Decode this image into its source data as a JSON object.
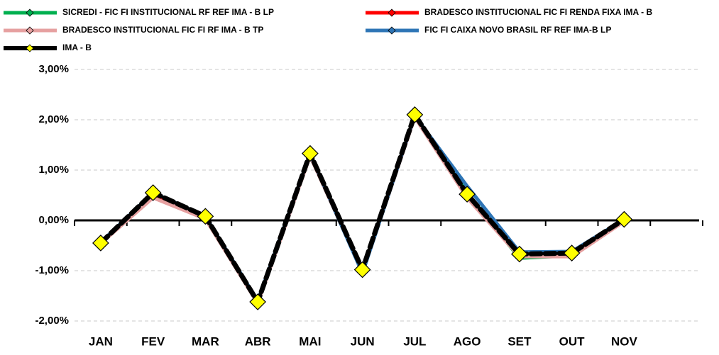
{
  "chart_data": {
    "type": "line",
    "categories": [
      "JAN",
      "FEV",
      "MAR",
      "ABR",
      "MAI",
      "JUN",
      "JUL",
      "AGO",
      "SET",
      "OUT",
      "NOV",
      null
    ],
    "series": [
      {
        "name": "SICREDI - FIC FI INSTITUCIONAL RF REF IMA - B LP",
        "color": "#00b050",
        "values": [
          -0.45,
          0.52,
          0.06,
          -1.63,
          1.3,
          -1.0,
          2.08,
          0.55,
          -0.75,
          -0.7,
          0.0,
          null
        ]
      },
      {
        "name": "BRADESCO INSTITUCIONAL FIC FI RENDA FIXA IMA - B",
        "color": "#ff0000",
        "values": [
          -0.45,
          0.5,
          0.05,
          -1.64,
          1.3,
          -1.0,
          2.06,
          0.5,
          -0.72,
          -0.7,
          -0.01,
          null
        ]
      },
      {
        "name": "BRADESCO INSTITUCIONAL FIC FI RF IMA - B TP",
        "color": "#e6a0a0",
        "values": [
          -0.46,
          0.45,
          0.03,
          -1.65,
          1.28,
          -1.02,
          2.05,
          0.45,
          -0.72,
          -0.72,
          -0.02,
          null
        ]
      },
      {
        "name": "FIC FI CAIXA NOVO BRASIL RF REF IMA-B LP",
        "color": "#2e75b6",
        "values": [
          -0.44,
          0.55,
          0.08,
          -1.6,
          1.32,
          -1.05,
          2.08,
          0.68,
          -0.63,
          -0.62,
          0.02,
          null
        ]
      },
      {
        "name": "IMA - B",
        "color": "#000000",
        "marker": "#ffff00",
        "values": [
          -0.45,
          0.55,
          0.08,
          -1.62,
          1.33,
          -0.98,
          2.1,
          0.52,
          -0.67,
          -0.65,
          0.02,
          null
        ]
      }
    ],
    "ylim": [
      -2,
      3
    ],
    "yticks": [
      {
        "value": -2,
        "label": "-2,00%"
      },
      {
        "value": -1,
        "label": "-1,00%"
      },
      {
        "value": 0,
        "label": "0,00%"
      },
      {
        "value": 1,
        "label": "1,00%"
      },
      {
        "value": 2,
        "label": "2,00%"
      },
      {
        "value": 3,
        "label": "3,00%"
      }
    ],
    "grid": true,
    "legend": "top"
  }
}
